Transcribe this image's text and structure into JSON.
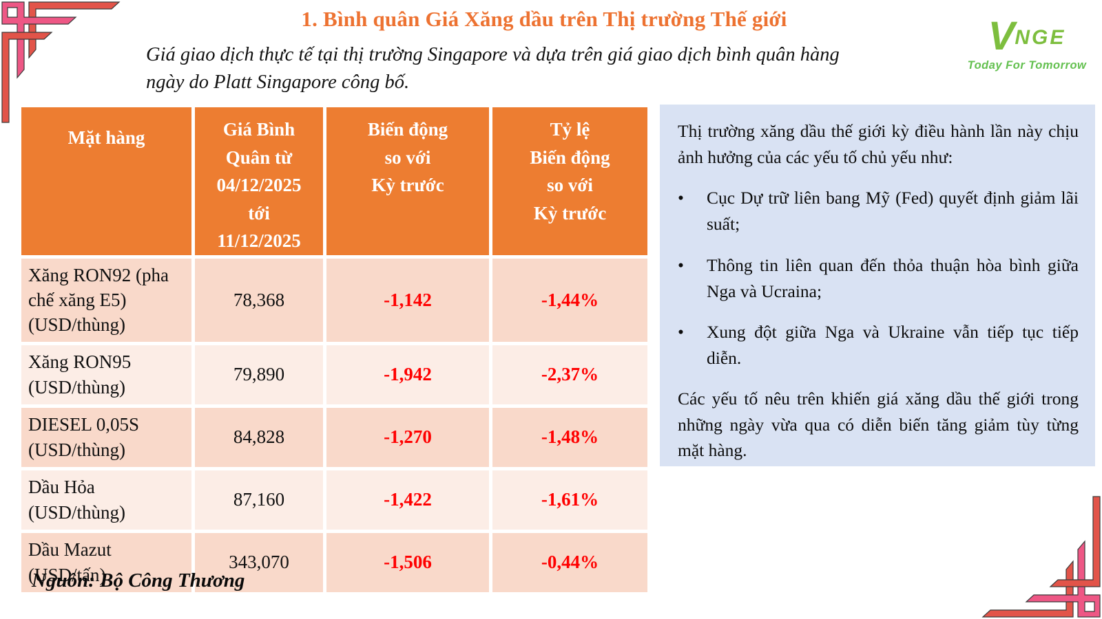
{
  "slide": {
    "title": "1. Bình quân Giá Xăng dầu trên Thị trường Thế giới",
    "subtitle": "Giá giao dịch thực tế tại thị trường Singapore và dựa trên giá giao dịch bình quân hàng\nngày do Platt Singapore công bố.",
    "source": "Nguồn: Bộ Công Thương"
  },
  "logo": {
    "v": "V",
    "rest": "NGE",
    "tagline": "Today For Tomorrow"
  },
  "table": {
    "headers": [
      "Mặt hàng",
      "Giá Bình\nQuân từ\n04/12/2025\ntới\n11/12/2025",
      "Biến động\nso với\nKỳ trước",
      "Tỷ lệ\nBiến động\nso với\nKỳ trước"
    ],
    "rows": [
      {
        "item": "Xăng RON92 (pha chế xăng E5) (USD/thùng)",
        "avg": "78,368",
        "change": "-1,142",
        "pct": "-1,44%"
      },
      {
        "item": "Xăng RON95 (USD/thùng)",
        "avg": "79,890",
        "change": "-1,942",
        "pct": "-2,37%"
      },
      {
        "item": "DIESEL 0,05S (USD/thùng)",
        "avg": "84,828",
        "change": "-1,270",
        "pct": "-1,48%"
      },
      {
        "item": "Dầu Hỏa (USD/thùng)",
        "avg": "87,160",
        "change": "-1,422",
        "pct": "-1,61%"
      },
      {
        "item": "Dầu Mazut (USD/tấn)",
        "avg": "343,070",
        "change": "-1,506",
        "pct": "-0,44%"
      }
    ]
  },
  "panel": {
    "intro": "Thị trường xăng dầu thế giới kỳ điều hành lần này chịu ảnh hưởng của các yếu tố chủ yếu như:",
    "bullet_glyph": "•",
    "bullets": [
      "Cục Dự trữ liên bang Mỹ (Fed) quyết định giảm lãi suất;",
      "Thông tin liên quan đến thỏa thuận hòa bình giữa Nga và Ucraina;",
      "Xung đột giữa Nga và Ukraine vẫn tiếp tục tiếp diễn."
    ],
    "closing": "Các yếu tố nêu trên khiến giá xăng dầu thế giới trong những ngày vừa qua có diễn biến tăng giảm tùy từng mặt hàng."
  },
  "colors": {
    "title_orange": "#ed7231",
    "header_orange": "#ed7d31",
    "row_dark": "#f9d9ca",
    "row_light": "#fcede6",
    "value_red": "#ff0000",
    "panel_blue": "#d9e2f3",
    "logo_green": "#7dbe3e",
    "tagline_green": "#63c04f",
    "ornament_red": "#e25449",
    "ornament_pink": "#ee5785"
  }
}
